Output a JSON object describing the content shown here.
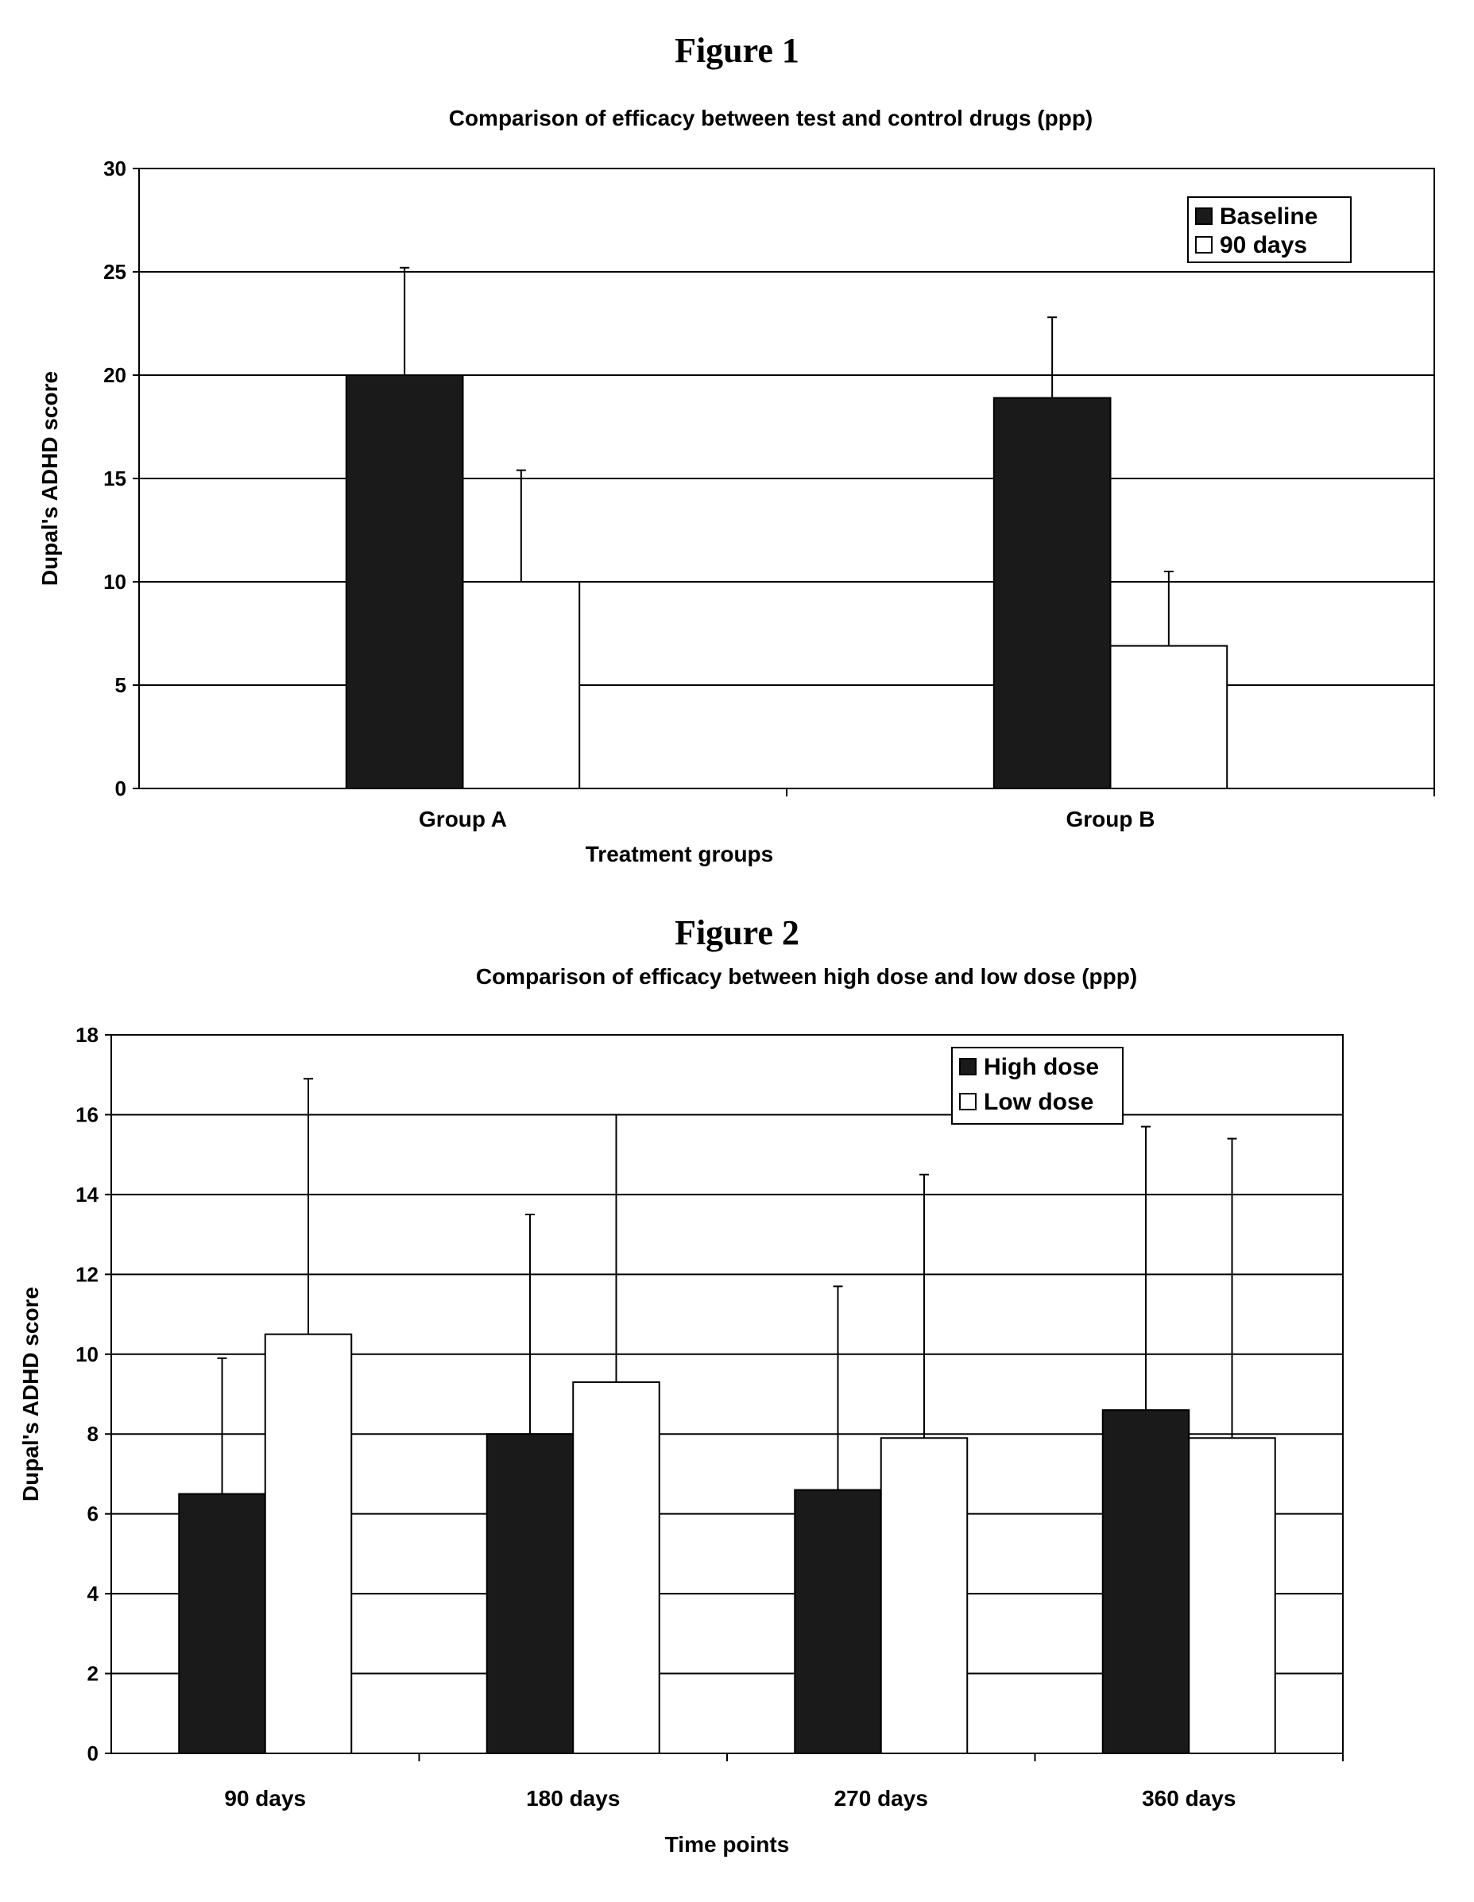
{
  "figure1": {
    "heading": "Figure 1"
  },
  "figure2": {
    "heading": "Figure 2"
  },
  "chart_data": [
    {
      "type": "bar",
      "title": "Comparison of efficacy between test and control drugs (ppp)",
      "xlabel": "Treatment groups",
      "ylabel": "Dupal's ADHD score",
      "categories": [
        "Group A",
        "Group B"
      ],
      "series": [
        {
          "name": "Baseline",
          "values": [
            20,
            18.9
          ],
          "errors": [
            5.2,
            3.9
          ],
          "color": "#1a1a1a"
        },
        {
          "name": "90 days",
          "values": [
            10,
            6.9
          ],
          "errors": [
            5.4,
            3.6
          ],
          "color": "#ffffff"
        }
      ],
      "ylim": [
        0,
        30
      ],
      "yticks": [
        "0",
        "5",
        "10",
        "15",
        "20",
        "25",
        "30"
      ],
      "grid": true,
      "legend": "top-right"
    },
    {
      "type": "bar",
      "title": "Comparison of efficacy between high dose and low dose (ppp)",
      "xlabel": "Time points",
      "ylabel": "Dupal's ADHD score",
      "categories": [
        "90 days",
        "180 days",
        "270 days",
        "360 days"
      ],
      "series": [
        {
          "name": "High dose",
          "values": [
            6.5,
            8.0,
            6.6,
            8.6
          ],
          "errors": [
            3.4,
            5.5,
            5.1,
            7.1
          ],
          "color": "#1a1a1a"
        },
        {
          "name": "Low dose",
          "values": [
            10.5,
            9.3,
            7.9,
            7.9
          ],
          "errors": [
            6.4,
            6.7,
            6.6,
            7.5
          ],
          "color": "#ffffff"
        }
      ],
      "ylim": [
        0,
        18
      ],
      "yticks": [
        "0",
        "2",
        "4",
        "6",
        "8",
        "10",
        "12",
        "14",
        "16",
        "18"
      ],
      "grid": true,
      "legend": "top-right"
    }
  ]
}
